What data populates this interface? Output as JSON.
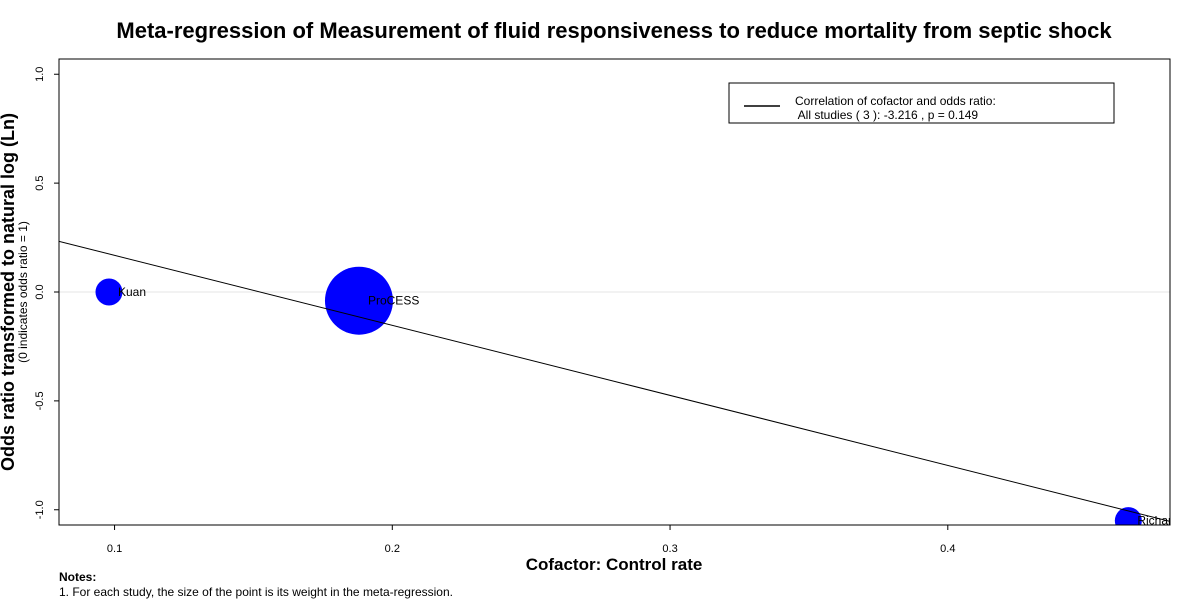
{
  "chart_data": {
    "type": "scatter",
    "title": "Meta-regression of  Measurement of fluid responsiveness to reduce mortality from septic shock",
    "xlabel": "Cofactor:  Control rate",
    "ylabel": "Odds ratio transformed to natural log (Ln)",
    "ylabel_sub": "(0 indicates odds ratio = 1)",
    "xlim": [
      0.08,
      0.48
    ],
    "ylim": [
      -1.07,
      1.07
    ],
    "x_ticks": [
      "0.1",
      "0.2",
      "0.3",
      "0.4"
    ],
    "x_tick_values": [
      0.1,
      0.2,
      0.3,
      0.4
    ],
    "y_ticks": [
      "-1.0",
      "-0.5",
      "0.0",
      "0.5",
      "1.0"
    ],
    "y_tick_values": [
      -1.0,
      -0.5,
      0.0,
      0.5,
      1.0
    ],
    "points": [
      {
        "label": "Kuan",
        "x": 0.098,
        "y": 0.0,
        "weight": 0.12
      },
      {
        "label": "ProCESS",
        "x": 0.188,
        "y": -0.04,
        "weight": 0.76
      },
      {
        "label": "Richard",
        "x": 0.465,
        "y": -1.05,
        "weight": 0.12
      }
    ],
    "regression_line": {
      "intercept": 0.49,
      "slope": -3.216
    },
    "reference_line_y": 0,
    "legend": {
      "position": "top-right",
      "line1": "Correlation of cofactor and odds ratio:",
      "line2": " All studies ( 3 ): -3.216 , p = 0.149"
    },
    "grid": false,
    "colors": {
      "points": "#0000ff",
      "line": "#000000",
      "reference": "#e6e6e6"
    }
  },
  "notes": {
    "heading": "Notes:",
    "line1": "1. For each study, the size of the point is its weight in the meta-regression."
  }
}
